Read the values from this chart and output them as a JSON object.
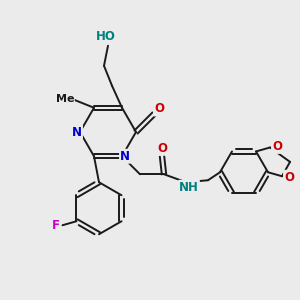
{
  "bg_color": "#ebebeb",
  "bond_color": "#1a1a1a",
  "colors": {
    "N": "#0000cc",
    "O": "#cc0000",
    "F": "#cc00cc",
    "HO": "#008080",
    "NH": "#008080",
    "C": "#1a1a1a"
  },
  "font_size": 8.5,
  "line_width": 1.4
}
